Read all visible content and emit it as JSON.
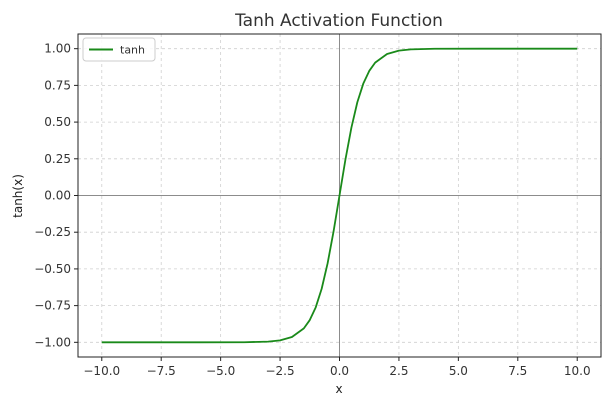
{
  "chart_data": {
    "type": "line",
    "title": "Tanh Activation Function",
    "xlabel": "x",
    "ylabel": "tanh(x)",
    "xlim": [
      -11.0,
      11.0
    ],
    "ylim": [
      -1.1,
      1.1
    ],
    "xticks": [
      -10.0,
      -7.5,
      -5.0,
      -2.5,
      0.0,
      2.5,
      5.0,
      7.5,
      10.0
    ],
    "xtick_labels": [
      "−10.0",
      "−7.5",
      "−5.0",
      "−2.5",
      "0.0",
      "2.5",
      "5.0",
      "7.5",
      "10.0"
    ],
    "yticks": [
      -1.0,
      -0.75,
      -0.5,
      -0.25,
      0.0,
      0.25,
      0.5,
      0.75,
      1.0
    ],
    "ytick_labels": [
      "−1.00",
      "−0.75",
      "−0.50",
      "−0.25",
      "0.00",
      "0.25",
      "0.50",
      "0.75",
      "1.00"
    ],
    "grid": true,
    "reference_lines": {
      "x": 0,
      "y": 0
    },
    "legend": {
      "placement": "top-left",
      "entries": [
        "tanh"
      ]
    },
    "series": [
      {
        "name": "tanh",
        "color": "#1a8a1a",
        "x": [
          -10,
          -6,
          -4,
          -3,
          -2.5,
          -2,
          -1.5,
          -1.25,
          -1,
          -0.75,
          -0.5,
          -0.25,
          0,
          0.25,
          0.5,
          0.75,
          1,
          1.25,
          1.5,
          2,
          2.5,
          3,
          4,
          6,
          10
        ],
        "y": [
          -1.0,
          -1.0,
          -0.9993,
          -0.9951,
          -0.9866,
          -0.964,
          -0.9051,
          -0.8483,
          -0.7616,
          -0.6351,
          -0.4621,
          -0.2449,
          0.0,
          0.2449,
          0.4621,
          0.6351,
          0.7616,
          0.8483,
          0.9051,
          0.964,
          0.9866,
          0.9951,
          0.9993,
          1.0,
          1.0
        ]
      }
    ]
  }
}
